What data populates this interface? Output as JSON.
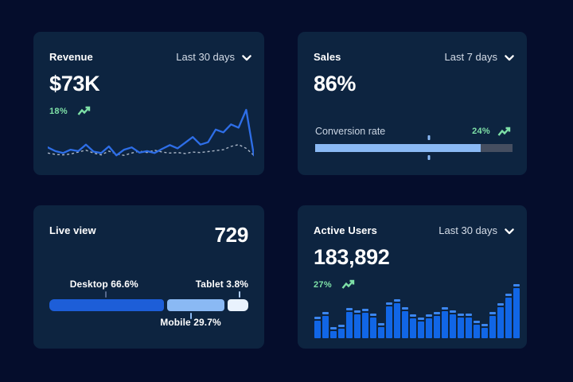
{
  "colors": {
    "page_bg": "#050d2c",
    "card_bg": "#0d2440",
    "line_blue": "#2e6ee7",
    "dashed_gray": "#aab6c6",
    "progress_fill": "#8ab9f4",
    "progress_track": "#454e60",
    "bar_body_blue": "#1166e6",
    "bar_cap_blue": "#3c86ef",
    "green": "#7ee0a7",
    "text_primary": "#ffffff",
    "text_secondary": "#d5dde8"
  },
  "cards": {
    "revenue": {
      "title": "Revenue",
      "range_label": "Last 30 days",
      "value": "$73K",
      "delta": "18%"
    },
    "sales": {
      "title": "Sales",
      "range_label": "Last 7 days",
      "value": "86%",
      "metric_label": "Conversion rate",
      "delta": "24%"
    },
    "live_view": {
      "title": "Live view",
      "value": "729"
    },
    "active_users": {
      "title": "Active Users",
      "range_label": "Last 30 days",
      "value": "183,892",
      "delta": "27%"
    }
  },
  "chart_data": [
    {
      "card": "revenue",
      "type": "line",
      "title": "Revenue trend, last 30 days",
      "axes_visible": false,
      "ylim": [
        0,
        100
      ],
      "series": [
        {
          "name": "current",
          "style": "solid",
          "color": "#2e6ee7",
          "values": [
            20,
            12,
            8,
            15,
            12,
            26,
            11,
            8,
            22,
            3,
            15,
            20,
            9,
            12,
            8,
            17,
            25,
            18,
            30,
            42,
            26,
            31,
            58,
            52,
            69,
            62,
            100,
            3
          ]
        },
        {
          "name": "previous",
          "style": "dashed",
          "color": "#aab6c6",
          "values": [
            8,
            5,
            4,
            6,
            10,
            14,
            8,
            4,
            12,
            6,
            3,
            8,
            12,
            9,
            14,
            10,
            8,
            9,
            7,
            10,
            9,
            11,
            13,
            15,
            22,
            26,
            18,
            3
          ]
        }
      ]
    },
    {
      "card": "sales",
      "type": "progress",
      "label": "Conversion rate",
      "value_pct": 86,
      "fill_pct": 84,
      "marker_pct": 57.5
    },
    {
      "card": "live_view",
      "type": "stacked-bar",
      "segments": [
        {
          "name": "Desktop",
          "pct": 66.6,
          "label_text": "Desktop 66.6%",
          "color": "#1d5ed8",
          "display_pct": 57.5,
          "label_side": "top",
          "label_anchor": "center",
          "label_x_pct": 27.5,
          "connector_x_pct": 28.5,
          "connector_color": "#56688c"
        },
        {
          "name": "Mobile",
          "pct": 29.7,
          "label_text": "Mobile 29.7%",
          "color": "#8ab9f4",
          "display_pct": 29,
          "label_side": "bottom",
          "label_anchor": "center",
          "label_x_pct": 71,
          "connector_x_pct": 71,
          "connector_color": "#8ab9f4"
        },
        {
          "name": "Tablet",
          "pct": 3.8,
          "label_text": "Tablet 3.8%",
          "color": "#e9f2fd",
          "display_pct": 11,
          "label_side": "top",
          "label_anchor": "right",
          "label_x_pct": 100,
          "connector_x_pct": 95.5,
          "connector_color": "#aecdf5"
        }
      ]
    },
    {
      "card": "active_users",
      "type": "bar",
      "title": "Active users, last 30 days",
      "ylim": [
        0,
        100
      ],
      "values": [
        40,
        48,
        20,
        25,
        56,
        52,
        54,
        46,
        28,
        66,
        72,
        58,
        44,
        38,
        44,
        48,
        58,
        52,
        46,
        46,
        32,
        26,
        48,
        64,
        82,
        100
      ]
    }
  ]
}
